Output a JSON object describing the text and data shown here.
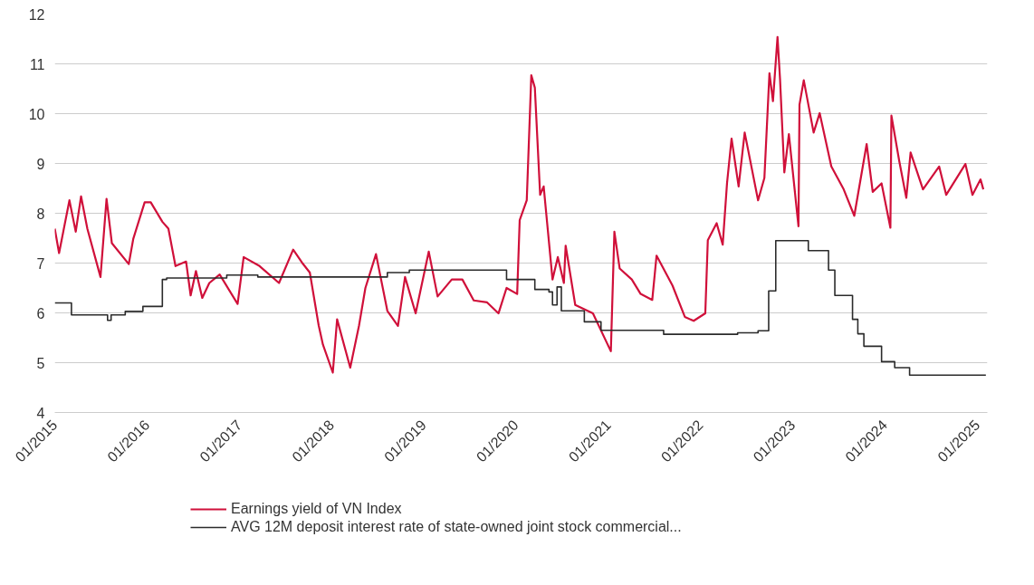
{
  "chart_data": {
    "type": "line",
    "xlim": [
      "2015-01-01",
      "2025-02-10"
    ],
    "xticks": [
      {
        "value": "2015-01-01",
        "label": "01/2015"
      },
      {
        "value": "2016-01-01",
        "label": "01/2016"
      },
      {
        "value": "2017-01-01",
        "label": "01/2017"
      },
      {
        "value": "2018-01-01",
        "label": "01/2018"
      },
      {
        "value": "2019-01-01",
        "label": "01/2019"
      },
      {
        "value": "2020-01-01",
        "label": "01/2020"
      },
      {
        "value": "2021-01-01",
        "label": "01/2021"
      },
      {
        "value": "2022-01-01",
        "label": "01/2022"
      },
      {
        "value": "2023-01-01",
        "label": "01/2023"
      },
      {
        "value": "2024-01-01",
        "label": "01/2024"
      },
      {
        "value": "2025-01-01",
        "label": "01/2025"
      }
    ],
    "ylim": [
      4,
      12
    ],
    "yticks": [
      4,
      5,
      6,
      7,
      8,
      9,
      10,
      11,
      12
    ],
    "grid": "y",
    "legend": "bottom",
    "series": [
      {
        "name": "Earnings yield of VN Index",
        "color": "#d0103a",
        "x": [
          "2015-01-01",
          "2015-01-18",
          "2015-02-28",
          "2015-03-25",
          "2015-04-15",
          "2015-05-10",
          "2015-07-01",
          "2015-07-25",
          "2015-08-15",
          "2015-10-21",
          "2015-11-08",
          "2015-12-23",
          "2016-01-16",
          "2016-03-02",
          "2016-03-26",
          "2016-04-23",
          "2016-06-04",
          "2016-06-22",
          "2016-07-13",
          "2016-08-07",
          "2016-09-04",
          "2016-10-15",
          "2016-12-25",
          "2017-01-18",
          "2017-03-22",
          "2017-06-07",
          "2017-08-02",
          "2017-09-06",
          "2017-10-07",
          "2017-11-11",
          "2017-11-28",
          "2018-01-06",
          "2018-01-23",
          "2018-03-16",
          "2018-04-20",
          "2018-05-15",
          "2018-06-26",
          "2018-08-10",
          "2018-09-21",
          "2018-10-19",
          "2018-11-30",
          "2019-01-21",
          "2019-02-25",
          "2019-04-22",
          "2019-06-03",
          "2019-07-18",
          "2019-09-09",
          "2019-10-24",
          "2019-11-25",
          "2020-01-06",
          "2020-01-16",
          "2020-02-13",
          "2020-03-02",
          "2020-03-16",
          "2020-04-06",
          "2020-04-20",
          "2020-05-25",
          "2020-06-15",
          "2020-07-09",
          "2020-07-16",
          "2020-08-23",
          "2020-11-01",
          "2021-01-11",
          "2021-01-25",
          "2021-02-15",
          "2021-04-04",
          "2021-05-09",
          "2021-06-24",
          "2021-07-11",
          "2021-09-12",
          "2021-10-31",
          "2021-12-05",
          "2022-01-20",
          "2022-01-30",
          "2022-03-06",
          "2022-03-30",
          "2022-04-16",
          "2022-05-04",
          "2022-06-01",
          "2022-06-25",
          "2022-08-17",
          "2022-09-11",
          "2022-10-01",
          "2022-10-15",
          "2022-11-02",
          "2022-11-12",
          "2022-11-29",
          "2022-12-17",
          "2023-01-24",
          "2023-01-28",
          "2023-02-14",
          "2023-03-25",
          "2023-04-18",
          "2023-06-03",
          "2023-07-22",
          "2023-09-02",
          "2023-10-21",
          "2023-11-14",
          "2023-12-19",
          "2024-01-23",
          "2024-01-27",
          "2024-02-27",
          "2024-03-26",
          "2024-04-12",
          "2024-05-31",
          "2024-08-03",
          "2024-08-31",
          "2024-11-15",
          "2024-12-13",
          "2025-01-14",
          "2025-01-25"
        ],
        "values": [
          7.69,
          7.2,
          8.26,
          7.63,
          8.34,
          7.69,
          6.72,
          8.29,
          7.4,
          6.98,
          7.49,
          8.22,
          8.22,
          7.83,
          7.69,
          6.94,
          7.03,
          6.35,
          6.84,
          6.3,
          6.6,
          6.77,
          6.18,
          7.12,
          6.94,
          6.6,
          7.27,
          7.01,
          6.81,
          5.75,
          5.36,
          4.8,
          5.87,
          4.9,
          5.75,
          6.5,
          7.18,
          6.04,
          5.74,
          6.72,
          5.99,
          7.23,
          6.33,
          6.67,
          6.67,
          6.25,
          6.21,
          5.99,
          6.5,
          6.38,
          7.86,
          8.26,
          10.77,
          10.52,
          8.37,
          8.54,
          6.67,
          7.12,
          6.6,
          7.35,
          6.16,
          5.99,
          5.23,
          7.63,
          6.89,
          6.67,
          6.38,
          6.26,
          7.15,
          6.55,
          5.92,
          5.84,
          5.99,
          7.46,
          7.8,
          7.37,
          8.6,
          9.5,
          8.54,
          9.62,
          8.26,
          8.71,
          10.81,
          10.25,
          11.54,
          10.69,
          8.82,
          9.59,
          7.74,
          10.18,
          10.67,
          9.62,
          10.01,
          8.94,
          8.48,
          7.95,
          9.39,
          8.43,
          8.6,
          7.71,
          9.96,
          9.05,
          8.31,
          9.22,
          8.48,
          8.94,
          8.37,
          8.99,
          8.37,
          8.68,
          8.48
        ]
      },
      {
        "name": "AVG 12M deposit interest rate of state-owned joint stock commercial...",
        "type": "step",
        "color": "#2b2b2b",
        "x": [
          "2015-01-01",
          "2015-03-08",
          "2015-07-29",
          "2015-08-12",
          "2015-10-07",
          "2015-12-16",
          "2016-03-02",
          "2016-03-19",
          "2016-11-12",
          "2017-03-15",
          "2018-08-10",
          "2018-11-05",
          "2019-11-25",
          "2020-03-16",
          "2020-05-11",
          "2020-05-25",
          "2020-06-12",
          "2020-06-29",
          "2020-09-28",
          "2020-12-03",
          "2021-08-08",
          "2022-05-28",
          "2022-08-17",
          "2022-09-28",
          "2022-10-26",
          "2023-03-04",
          "2023-05-23",
          "2023-06-17",
          "2023-08-26",
          "2023-09-16",
          "2023-10-10",
          "2023-12-19",
          "2024-02-09",
          "2024-04-08",
          "2025-02-04"
        ],
        "values": [
          6.2,
          5.96,
          5.85,
          5.96,
          6.03,
          6.13,
          6.67,
          6.7,
          6.76,
          6.72,
          6.81,
          6.86,
          6.67,
          6.47,
          6.42,
          6.16,
          6.52,
          6.04,
          5.82,
          5.65,
          5.57,
          5.6,
          5.64,
          6.44,
          7.45,
          7.25,
          6.86,
          6.35,
          5.87,
          5.58,
          5.33,
          5.02,
          4.9,
          4.75,
          4.75
        ]
      }
    ]
  }
}
